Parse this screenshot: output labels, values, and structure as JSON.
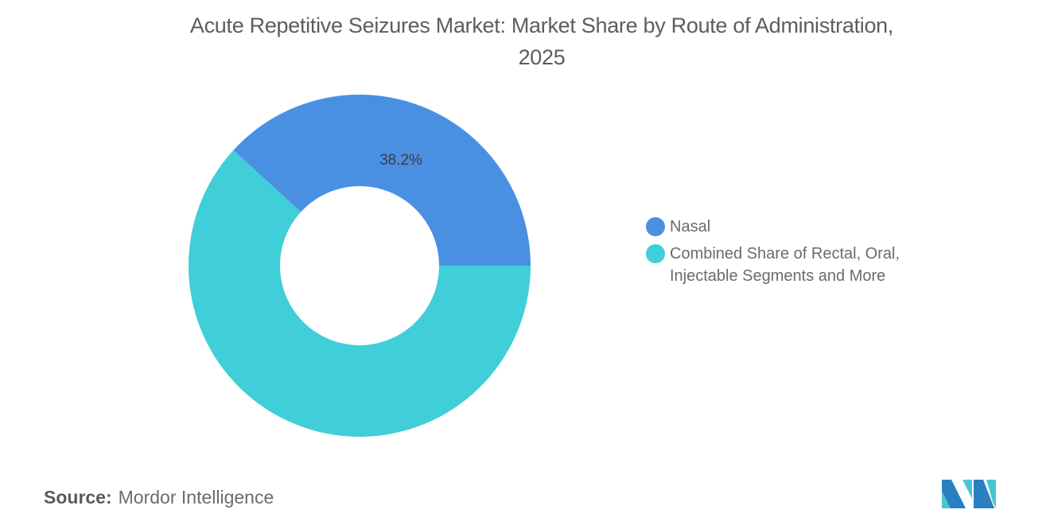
{
  "header": {
    "title_line1": "Acute Repetitive Seizures Market: Market Share by Route of Administration,",
    "title_line2": "2025"
  },
  "legend": {
    "items": [
      {
        "label": "Nasal",
        "color": "#4a90e2"
      },
      {
        "label_line1": "Combined Share of Rectal, Oral,",
        "label_line2": "Injectable Segments and More",
        "color": "#40ced8"
      }
    ]
  },
  "footer": {
    "source_label": "Source:",
    "source_value": "Mordor Intelligence"
  },
  "colors": {
    "nasal": "#4a90e2",
    "combined": "#40ced8",
    "logo_dark": "#2a7fc1",
    "logo_light": "#48c6d3"
  },
  "chart_data": {
    "type": "pie",
    "variant": "donut",
    "title": "Acute Repetitive Seizures Market: Market Share by Route of Administration, 2025",
    "categories": [
      "Nasal",
      "Combined Share of Rectal, Oral, Injectable Segments and More"
    ],
    "values": [
      38.2,
      61.8
    ],
    "unit": "%",
    "data_labels": [
      "38.2%",
      ""
    ],
    "colors": [
      "#4a90e2",
      "#40ced8"
    ],
    "legend_position": "right",
    "source": "Mordor Intelligence"
  }
}
